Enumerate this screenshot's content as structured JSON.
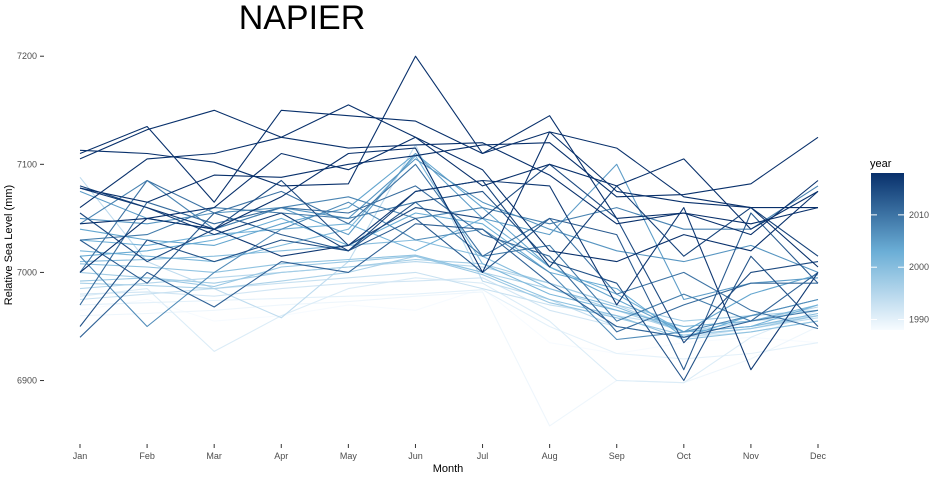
{
  "chart_data": {
    "type": "line",
    "title": "NAPIER",
    "xlabel": "Month",
    "ylabel": "Relative Sea Level (mm)",
    "categories": [
      "Jan",
      "Feb",
      "Mar",
      "Apr",
      "May",
      "Jun",
      "Jul",
      "Aug",
      "Sep",
      "Oct",
      "Nov",
      "Dec"
    ],
    "y_ticks": [
      6900,
      7000,
      7100,
      7200
    ],
    "ylim": [
      6845,
      7215
    ],
    "grid": false,
    "legend": {
      "title": "year",
      "type": "colorbar",
      "position": "right",
      "ticks": [
        1990,
        2000,
        2010
      ],
      "range": [
        1988,
        2018
      ],
      "color_low": "#f7fbff",
      "color_high": "#08306b"
    },
    "series": [
      {
        "year": 1988,
        "values": [
          6965,
          6975,
          6955,
          6960,
          6970,
          6965,
          6985,
          6935,
          6925,
          6935,
          6940,
          6935
        ]
      },
      {
        "year": 1989,
        "values": [
          6960,
          6962,
          6965,
          6970,
          6973,
          6978,
          6982,
          6858,
          6900,
          6898,
          6920,
          6950
        ]
      },
      {
        "year": 1990,
        "values": [
          6970,
          6972,
          6974,
          6976,
          6978,
          6980,
          6984,
          6950,
          6925,
          6920,
          6925,
          6935
        ]
      },
      {
        "year": 1991,
        "values": [
          6978,
          6985,
          6927,
          6960,
          6985,
          6995,
          6990,
          6955,
          6900,
          6898,
          6940,
          6965
        ]
      },
      {
        "year": 1992,
        "values": [
          6980,
          6982,
          6978,
          6985,
          6990,
          6992,
          6995,
          6965,
          6950,
          6940,
          6945,
          6955
        ]
      },
      {
        "year": 1993,
        "values": [
          6975,
          6980,
          6985,
          6990,
          6995,
          7000,
          6985,
          6970,
          6960,
          6950,
          6955,
          6960
        ]
      },
      {
        "year": 1994,
        "values": [
          7088,
          7010,
          6985,
          6958,
          7010,
          7118,
          6992,
          6975,
          6950,
          6940,
          6948,
          6958
        ]
      },
      {
        "year": 1995,
        "values": [
          6985,
          6990,
          6995,
          7000,
          7005,
          7010,
          7005,
          6990,
          6970,
          6945,
          6955,
          6968
        ]
      },
      {
        "year": 1996,
        "values": [
          6990,
          6988,
          6985,
          6992,
          7000,
          7015,
          7000,
          6985,
          6965,
          6945,
          6950,
          6960
        ]
      },
      {
        "year": 1997,
        "values": [
          7000,
          6995,
          6990,
          7000,
          7005,
          7012,
          7008,
          6990,
          6970,
          6955,
          6960,
          6965
        ]
      },
      {
        "year": 1998,
        "values": [
          6992,
          6995,
          6987,
          7005,
          7010,
          7015,
          6998,
          6972,
          6958,
          6942,
          6948,
          6960
        ]
      },
      {
        "year": 1999,
        "values": [
          7008,
          7005,
          7000,
          7008,
          7012,
          7016,
          7000,
          6975,
          6960,
          6938,
          6945,
          6955
        ]
      },
      {
        "year": 2000,
        "values": [
          7010,
          7012,
          7015,
          7020,
          7025,
          7030,
          7015,
          6985,
          6968,
          6945,
          6950,
          6962
        ]
      },
      {
        "year": 2001,
        "values": [
          7020,
          7015,
          7010,
          7025,
          7040,
          7108,
          7008,
          6980,
          6965,
          6950,
          6955,
          6970
        ]
      },
      {
        "year": 2002,
        "values": [
          7030,
          7025,
          7035,
          7040,
          7045,
          7020,
          7050,
          7005,
          6980,
          6945,
          6950,
          6970
        ]
      },
      {
        "year": 2003,
        "values": [
          7015,
          7020,
          7030,
          7050,
          7025,
          7055,
          7045,
          7000,
          6985,
          6940,
          6960,
          6975
        ]
      },
      {
        "year": 2004,
        "values": [
          7040,
          7030,
          7025,
          7045,
          7060,
          7110,
          7060,
          7005,
          6975,
          6945,
          6980,
          6998
        ]
      },
      {
        "year": 2005,
        "values": [
          7075,
          7050,
          7040,
          7060,
          7035,
          7110,
          7050,
          7035,
          7100,
          6975,
          6990,
          6995
        ]
      },
      {
        "year": 2006,
        "values": [
          7050,
          7045,
          7055,
          7060,
          7050,
          7105,
          7065,
          7040,
          7020,
          7010,
          7025,
          7000
        ]
      },
      {
        "year": 2007,
        "values": [
          7015,
          6950,
          7000,
          7040,
          7065,
          7030,
          7040,
          7000,
          6938,
          6945,
          6960,
          6975
        ]
      },
      {
        "year": 2008,
        "values": [
          7045,
          7085,
          7040,
          7060,
          7070,
          7050,
          7060,
          7045,
          7060,
          7040,
          7040,
          7080
        ]
      },
      {
        "year": 2009,
        "values": [
          7030,
          7035,
          7060,
          7055,
          7050,
          7065,
          7015,
          7025,
          6955,
          6980,
          6955,
          6965
        ]
      },
      {
        "year": 2010,
        "values": [
          7000,
          7085,
          7055,
          7075,
          7045,
          7100,
          7015,
          7050,
          6980,
          7000,
          6965,
          6948
        ]
      },
      {
        "year": 2011,
        "values": [
          6970,
          7065,
          7045,
          7060,
          7055,
          7080,
          7035,
          7015,
          6945,
          6970,
          6990,
          6990
        ]
      },
      {
        "year": 2012,
        "values": [
          6940,
          7000,
          6968,
          7010,
          7000,
          7045,
          7040,
          6990,
          6950,
          6940,
          6955,
          7000
        ]
      },
      {
        "year": 2013,
        "values": [
          7030,
          6990,
          7055,
          7035,
          7020,
          7050,
          7000,
          7050,
          7035,
          6910,
          7055,
          6990
        ]
      },
      {
        "year": 2014,
        "values": [
          6950,
          7030,
          7010,
          7030,
          7020,
          7065,
          7075,
          7010,
          6990,
          6900,
          7015,
          6950
        ]
      },
      {
        "year": 2015,
        "values": [
          7055,
          7010,
          7040,
          7085,
          7025,
          7060,
          7050,
          7100,
          7050,
          6935,
          7000,
          7010
        ]
      },
      {
        "year": 2016,
        "values": [
          7080,
          7060,
          7035,
          7055,
          7020,
          7075,
          7085,
          7005,
          7080,
          7015,
          7060,
          7015
        ]
      },
      {
        "year": 2017,
        "values": [
          7078,
          7060,
          7040,
          7015,
          7025,
          7075,
          7085,
          7080,
          6970,
          7060,
          6910,
          7000
        ]
      },
      {
        "year": 2018,
        "values": [
          7000,
          7050,
          7040,
          7070,
          7110,
          7115,
          7000,
          7130,
          7075,
          7065,
          7060,
          7005
        ]
      },
      {
        "year": 2019,
        "values": [
          7045,
          7050,
          7060,
          7110,
          7095,
          7125,
          7095,
          7020,
          7010,
          7035,
          7020,
          7075
        ]
      },
      {
        "year": 2020,
        "values": [
          7060,
          7105,
          7110,
          7125,
          7115,
          7118,
          7120,
          7090,
          7045,
          7055,
          7035,
          7085
        ]
      },
      {
        "year": 2021,
        "values": [
          7110,
          7135,
          7065,
          7150,
          7145,
          7140,
          7110,
          7145,
          7050,
          7055,
          7045,
          7060
        ]
      },
      {
        "year": 2022,
        "values": [
          7105,
          7132,
          7150,
          7125,
          7155,
          7125,
          7080,
          7100,
          7080,
          7105,
          7040,
          7075
        ]
      },
      {
        "year": 2023,
        "values": [
          7113,
          7110,
          7102,
          7080,
          7082,
          7200,
          7110,
          7130,
          7115,
          7070,
          7060,
          7060
        ]
      },
      {
        "year": 2024,
        "values": [
          7078,
          7065,
          7090,
          7088,
          7100,
          7108,
          7118,
          7120,
          7070,
          7072,
          7082,
          7125
        ]
      }
    ]
  }
}
